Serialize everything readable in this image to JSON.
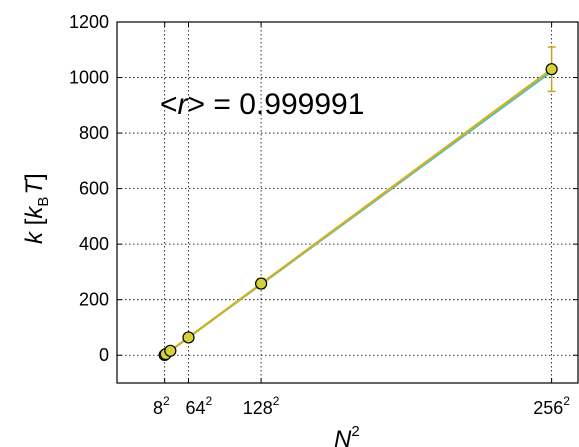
{
  "chart_data": {
    "type": "line",
    "x_ticks": [
      {
        "value": 64,
        "base": "8",
        "exp": "2"
      },
      {
        "value": 4096,
        "base": "64",
        "exp": "2"
      },
      {
        "value": 16384,
        "base": "128",
        "exp": "2"
      },
      {
        "value": 65536,
        "base": "256",
        "exp": "2"
      }
    ],
    "y_ticks": [
      0,
      200,
      400,
      600,
      800,
      1000,
      1200
    ],
    "xlim": [
      -8000,
      70000
    ],
    "ylim": [
      -100,
      1200
    ],
    "xlabel": {
      "base": "N",
      "exp": "2"
    },
    "ylabel": {
      "k": "k",
      "open": " [",
      "kb": "k",
      "sub": "B",
      "T": "T",
      "close": "]"
    },
    "annotation": {
      "open": "<",
      "r": "r",
      "close": ">",
      "eq": " = 0.999991"
    },
    "grid": true,
    "series": [
      {
        "x": [
          64,
          256,
          1024,
          4096,
          16384,
          65536
        ],
        "y": [
          1,
          4,
          16,
          64,
          258,
          1030
        ],
        "y_err": [
          1,
          2,
          3,
          6,
          18,
          80
        ],
        "color": "#d4d23a",
        "marker_edge": "#000000"
      }
    ],
    "fit_lines": [
      {
        "x": [
          64,
          65536
        ],
        "y": [
          1.0,
          1022
        ],
        "color": "#4fc0c8"
      },
      {
        "x": [
          64,
          65536
        ],
        "y": [
          1.0,
          1030
        ],
        "color": "#d4b01e"
      }
    ]
  }
}
